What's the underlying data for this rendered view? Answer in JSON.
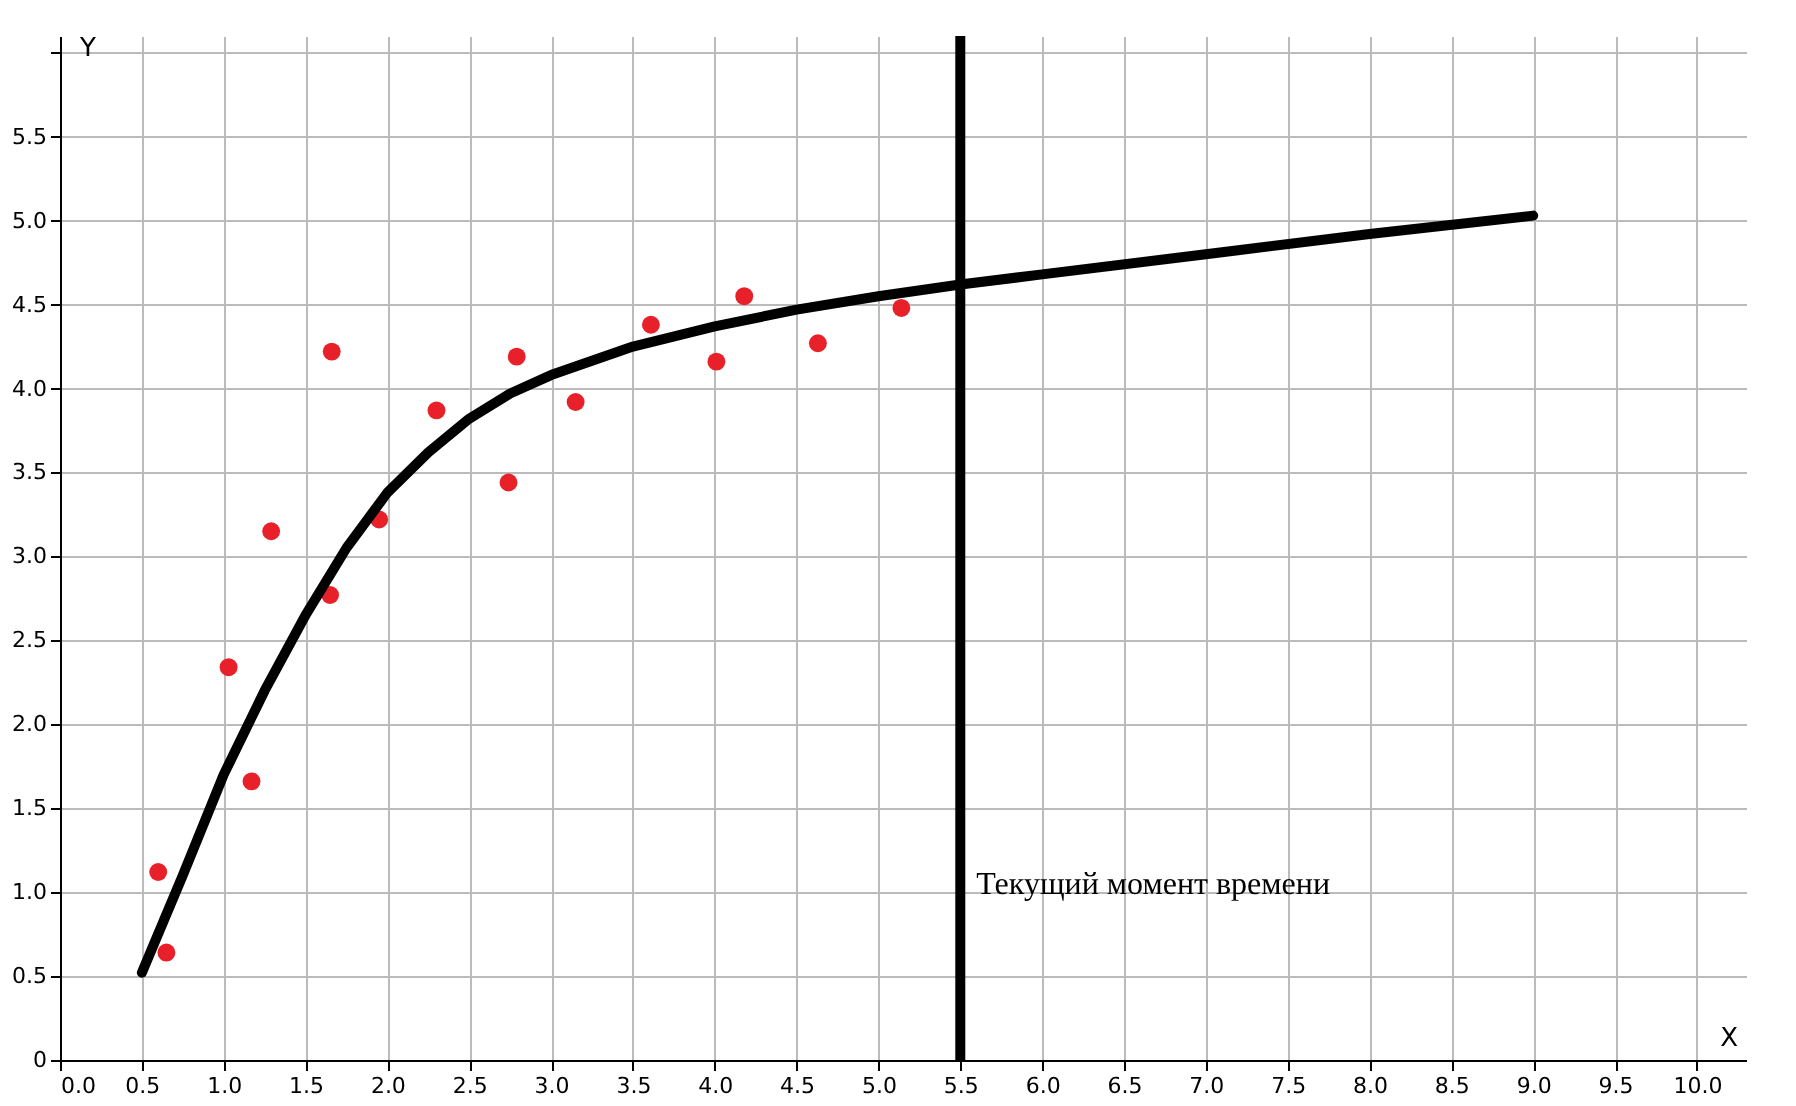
{
  "chart_data": {
    "type": "scatter",
    "xlabel": "X",
    "ylabel": "Y",
    "xlim": [
      0,
      10.3
    ],
    "ylim": [
      0,
      6.1
    ],
    "xticks": [
      {
        "value": 0,
        "label": "0.0"
      },
      {
        "value": 0.5,
        "label": "0.5"
      },
      {
        "value": 1,
        "label": "1.0"
      },
      {
        "value": 1.5,
        "label": "1.5"
      },
      {
        "value": 2,
        "label": "2.0"
      },
      {
        "value": 2.5,
        "label": "2.5"
      },
      {
        "value": 3,
        "label": "3.0"
      },
      {
        "value": 3.5,
        "label": "3.5"
      },
      {
        "value": 4,
        "label": "4.0"
      },
      {
        "value": 4.5,
        "label": "4.5"
      },
      {
        "value": 5,
        "label": "5.0"
      },
      {
        "value": 5.5,
        "label": "5.5"
      },
      {
        "value": 6,
        "label": "6.0"
      },
      {
        "value": 6.5,
        "label": "6.5"
      },
      {
        "value": 7,
        "label": "7.0"
      },
      {
        "value": 7.5,
        "label": "7.5"
      },
      {
        "value": 8,
        "label": "8.0"
      },
      {
        "value": 8.5,
        "label": "8.5"
      },
      {
        "value": 9,
        "label": "9.0"
      },
      {
        "value": 9.5,
        "label": "9.5"
      },
      {
        "value": 10,
        "label": "10.0"
      }
    ],
    "yticks": [
      0,
      0.5,
      {
        "value": 1,
        "label": "1.0"
      },
      1.5,
      {
        "value": 2,
        "label": "2.0"
      },
      2.5,
      {
        "value": 3,
        "label": "3.0"
      },
      3.5,
      {
        "value": 4,
        "label": "4.0"
      },
      4.5,
      {
        "value": 5,
        "label": "5.0"
      },
      5.5,
      {
        "value": 6,
        "label": null
      }
    ],
    "grid": true,
    "series": [
      {
        "color": "#e8202a",
        "marker": "circle",
        "x": [
          0.6,
          0.65,
          1.03,
          1.17,
          1.29,
          1.66,
          1.65,
          1.95,
          2.3,
          2.74,
          2.79,
          3.15,
          3.61,
          4.01,
          4.18,
          4.63,
          5.14
        ],
        "values": [
          1.12,
          0.64,
          2.34,
          1.66,
          3.15,
          4.22,
          2.77,
          3.22,
          3.87,
          3.44,
          4.19,
          3.92,
          4.38,
          4.16,
          4.55,
          4.27,
          4.48
        ]
      },
      {
        "type": "line",
        "color": "#000000",
        "marker": "none",
        "x": [
          0.5,
          0.75,
          1.0,
          1.25,
          1.5,
          1.75,
          2.0,
          2.25,
          2.5,
          2.75,
          3.0,
          3.5,
          4.0,
          4.5,
          5.0,
          5.5,
          6.0,
          7.0,
          8.0,
          9.0
        ],
        "values": [
          0.52,
          1.1,
          1.7,
          2.2,
          2.65,
          3.05,
          3.38,
          3.62,
          3.82,
          3.97,
          4.08,
          4.25,
          4.37,
          4.47,
          4.55,
          4.62,
          4.68,
          4.8,
          4.92,
          5.03
        ]
      }
    ],
    "ref_lines": [
      {
        "axis": "x",
        "value": 5.5,
        "label": "Текущий момент времени",
        "color": "#000000",
        "line_style": "solid"
      }
    ]
  }
}
